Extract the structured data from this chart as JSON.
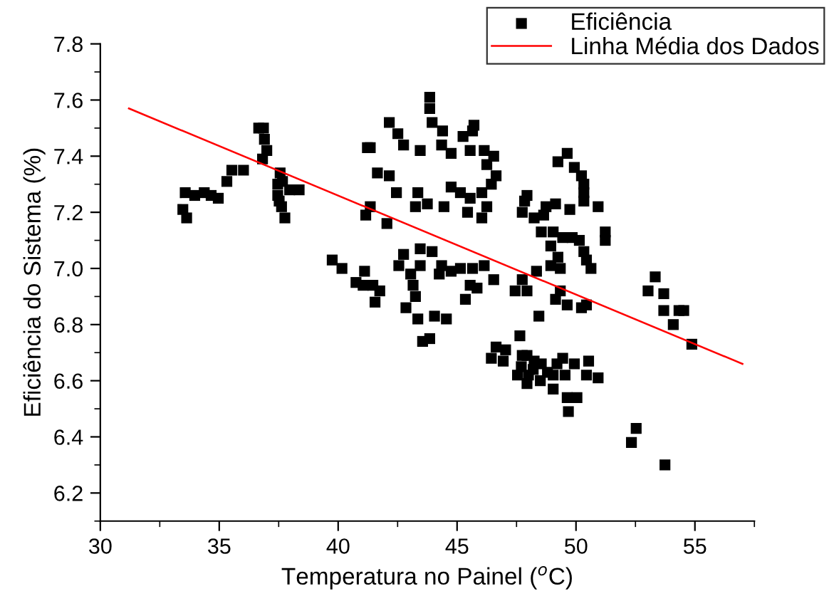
{
  "chart_data": {
    "type": "scatter",
    "xlabel": "Temperatura no Painel ($^{o}$C)",
    "ylabel": "Eficiência do Sistema (%)",
    "xlim": [
      30,
      57.5
    ],
    "ylim": [
      6.1,
      7.8
    ],
    "xticks": [
      30,
      35,
      40,
      45,
      50,
      55
    ],
    "yticks": [
      6.2,
      6.4,
      6.6,
      6.8,
      {
        "value": 7,
        "label": "7.0"
      },
      7.2,
      7.4,
      7.6,
      7.8
    ],
    "grid": false,
    "legend": "top right",
    "series": [
      {
        "name": "Eficiência",
        "marker": "square",
        "color": "#000000",
        "x": [
          36.66,
          36.86,
          36.9,
          37.0,
          36.82,
          37.56,
          37.46,
          37.66,
          37.46,
          37.52,
          37.62,
          37.76,
          37.96,
          38.36,
          33.57,
          33.97,
          34.37,
          34.66,
          34.96,
          33.47,
          33.63,
          35.32,
          35.53,
          36.02,
          41.16,
          41.23,
          39.75,
          40.16,
          40.75,
          41.05,
          41.11,
          43.85,
          43.85,
          42.15,
          43.95,
          44.39,
          45.71,
          45.65,
          45.25,
          42.51,
          41.35,
          42.75,
          43.45,
          44.35,
          44.75,
          45.55,
          46.14,
          46.54,
          46.25,
          46.64,
          46.44,
          41.65,
          42.15,
          42.45,
          43.35,
          43.25,
          43.75,
          44.45,
          44.75,
          45.14,
          45.55,
          46.04,
          46.25,
          45.44,
          46.04,
          41.35,
          42.05,
          47.94,
          47.74,
          48.24,
          48.74,
          48.54,
          48.94,
          48.94,
          41.46,
          41.75,
          41.55,
          42.75,
          43.45,
          43.95,
          42.55,
          43.05,
          43.45,
          44.35,
          44.25,
          44.75,
          45.14,
          45.65,
          46.14,
          46.54,
          45.55,
          45.84,
          45.35,
          43.15,
          43.25,
          42.85,
          43.35,
          44.05,
          44.55,
          43.55,
          43.85,
          47.64,
          46.64,
          47.04,
          46.44,
          47.74,
          48.24,
          47.44,
          47.94,
          48.34,
          48.44,
          47.74,
          49.63,
          49.24,
          49.93,
          50.23,
          50.33,
          50.33,
          50.33,
          50.93,
          47.84,
          49.14,
          48.64,
          49.74,
          49.04,
          49.44,
          49.84,
          50.14,
          49.24,
          49.34,
          50.33,
          50.44,
          50.63,
          51.23,
          51.23,
          49.34,
          49.14,
          49.63,
          50.23,
          50.44,
          53.33,
          53.03,
          53.69,
          53.69,
          54.33,
          54.53,
          54.09,
          54.87,
          46.94,
          47.94,
          47.54,
          47.94,
          48.54,
          49.04,
          49.04,
          49.44,
          49.54,
          49.93,
          50.53,
          50.44,
          50.93,
          49.63,
          50.04,
          49.68,
          52.53,
          52.33,
          53.74,
          48.2,
          48.5,
          48.8,
          49.2,
          47.7,
          48.0
        ],
        "values": [
          7.5,
          7.5,
          7.46,
          7.42,
          7.39,
          7.34,
          7.3,
          7.31,
          7.26,
          7.24,
          7.22,
          7.18,
          7.28,
          7.28,
          7.27,
          7.26,
          7.27,
          7.26,
          7.25,
          7.21,
          7.18,
          7.31,
          7.35,
          7.35,
          7.19,
          7.43,
          7.03,
          7.0,
          6.95,
          6.94,
          6.99,
          7.61,
          7.57,
          7.52,
          7.52,
          7.49,
          7.51,
          7.49,
          7.47,
          7.48,
          7.43,
          7.44,
          7.42,
          7.44,
          7.41,
          7.42,
          7.42,
          7.4,
          7.37,
          7.33,
          7.3,
          7.34,
          7.33,
          7.27,
          7.27,
          7.22,
          7.23,
          7.22,
          7.29,
          7.27,
          7.25,
          7.27,
          7.22,
          7.2,
          7.18,
          7.22,
          7.16,
          7.26,
          7.2,
          7.18,
          7.22,
          7.13,
          7.08,
          7.01,
          6.94,
          6.92,
          6.88,
          7.05,
          7.07,
          7.06,
          7.01,
          6.98,
          7.01,
          7.01,
          6.98,
          6.99,
          7.0,
          7.0,
          7.01,
          6.96,
          6.94,
          6.93,
          6.89,
          6.94,
          6.9,
          6.86,
          6.82,
          6.83,
          6.82,
          6.74,
          6.75,
          6.76,
          6.72,
          6.71,
          6.68,
          6.69,
          6.67,
          6.92,
          6.92,
          6.99,
          6.83,
          6.96,
          7.41,
          7.38,
          7.36,
          7.33,
          7.3,
          7.27,
          7.24,
          7.22,
          7.24,
          7.23,
          7.19,
          7.21,
          7.13,
          7.11,
          7.11,
          7.1,
          7.04,
          7.0,
          7.06,
          7.03,
          7.0,
          7.13,
          7.1,
          6.92,
          6.89,
          6.87,
          6.86,
          6.87,
          6.97,
          6.92,
          6.91,
          6.85,
          6.85,
          6.85,
          6.8,
          6.73,
          6.67,
          6.69,
          6.62,
          6.59,
          6.66,
          6.62,
          6.57,
          6.68,
          6.62,
          6.66,
          6.67,
          6.62,
          6.61,
          6.54,
          6.54,
          6.49,
          6.43,
          6.38,
          6.3,
          6.64,
          6.6,
          6.63,
          6.66,
          6.65,
          6.62
        ]
      },
      {
        "name": "Linha Média dos Dados",
        "type": "line",
        "color": "#ff0000",
        "marker": "none",
        "x": [
          31.2,
          57.0
        ],
        "values": [
          7.57,
          6.66
        ]
      }
    ]
  }
}
